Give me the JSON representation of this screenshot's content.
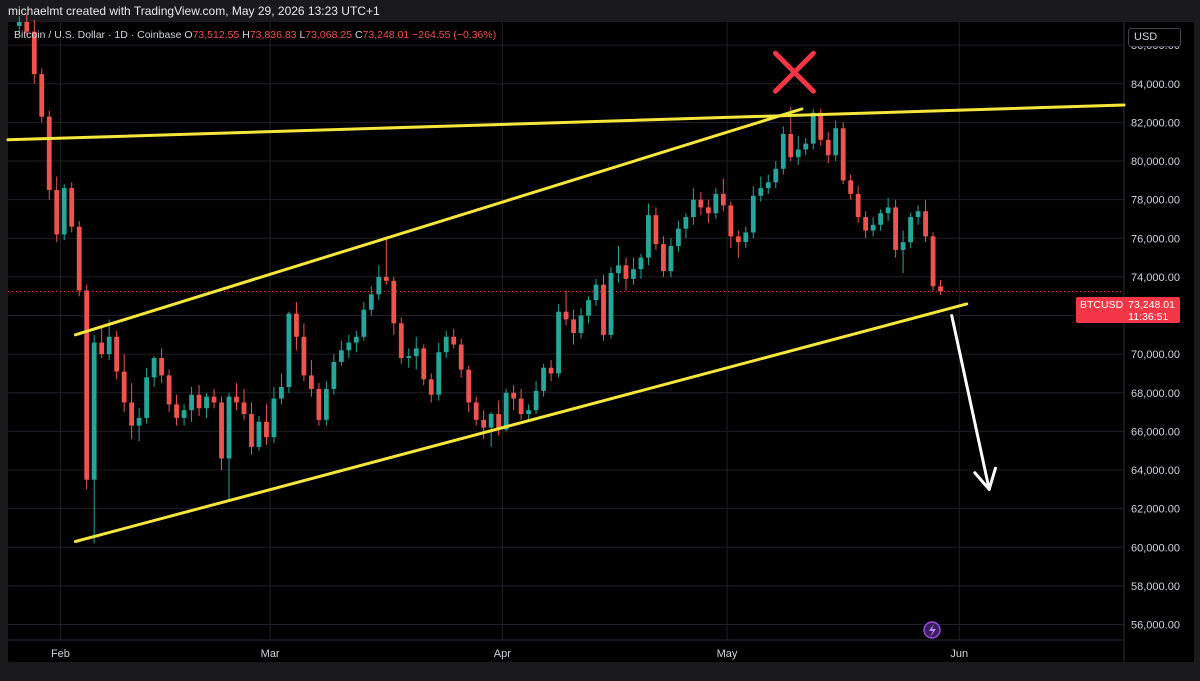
{
  "header": {
    "credit": "michaelmt created with TradingView.com, May 29, 2026 13:23 UTC+1"
  },
  "symbol_info": {
    "title": "Bitcoin / U.S. Dollar · 1D · Coinbase",
    "open_label": "O",
    "open": "73,512.55",
    "high_label": "H",
    "high": "73,836.83",
    "low_label": "L",
    "low": "73,068.25",
    "close_label": "C",
    "close": "73,248.01",
    "change": "−264.55 (−0.36%)"
  },
  "price_scale": {
    "currency": "USD",
    "ticks": [
      "86,000.00",
      "84,000.00",
      "82,000.00",
      "80,000.00",
      "78,000.00",
      "76,000.00",
      "74,000.00",
      "72,000.00",
      "70,000.00",
      "68,000.00",
      "66,000.00",
      "64,000.00",
      "62,000.00",
      "60,000.00",
      "58,000.00",
      "56,000.00"
    ]
  },
  "time_scale": {
    "ticks": [
      "Feb",
      "Mar",
      "Apr",
      "May",
      "Jun"
    ]
  },
  "last_price_tag": {
    "symbol": "BTCUSD",
    "price": "73,248.01",
    "countdown": "11:36:51"
  },
  "colors": {
    "up": "#26a69a",
    "down": "#ef5350",
    "trendline": "#f5e63c",
    "cross": "#f23645",
    "arrow": "#ffffff",
    "grid": "#1f2126"
  },
  "chart_data": {
    "type": "candlestick",
    "title": "Bitcoin / U.S. Dollar · 1D · Coinbase",
    "ylim": [
      55200,
      87200
    ],
    "x_range": [
      "2026-01-25",
      "2026-06-23"
    ],
    "grid": true,
    "y_ticks": [
      86000,
      84000,
      82000,
      80000,
      78000,
      76000,
      74000,
      72000,
      70000,
      68000,
      66000,
      64000,
      62000,
      60000,
      58000,
      56000
    ],
    "x_ticks": [
      {
        "label": "Feb",
        "date": "2026-02-01"
      },
      {
        "label": "Mar",
        "date": "2026-03-01"
      },
      {
        "label": "Apr",
        "date": "2026-04-01"
      },
      {
        "label": "May",
        "date": "2026-05-01"
      },
      {
        "label": "Jun",
        "date": "2026-06-01"
      }
    ],
    "candles": [
      [
        "2026-01-26",
        87000,
        87500,
        86600,
        87200
      ],
      [
        "2026-01-27",
        87200,
        87600,
        86500,
        86700
      ],
      [
        "2026-01-28",
        86700,
        87300,
        84000,
        84500
      ],
      [
        "2026-01-29",
        84500,
        84800,
        82000,
        82300
      ],
      [
        "2026-01-30",
        82300,
        82600,
        78000,
        78500
      ],
      [
        "2026-01-31",
        78500,
        79200,
        75800,
        76200
      ],
      [
        "2026-02-01",
        76200,
        78800,
        75900,
        78600
      ],
      [
        "2026-02-02",
        78600,
        78900,
        76300,
        76600
      ],
      [
        "2026-02-03",
        76600,
        76900,
        73000,
        73300
      ],
      [
        "2026-02-04",
        73300,
        73600,
        63000,
        63500
      ],
      [
        "2026-02-05",
        63500,
        71000,
        60200,
        70600
      ],
      [
        "2026-02-06",
        70600,
        71500,
        69800,
        70000
      ],
      [
        "2026-02-07",
        70000,
        71800,
        69700,
        70900
      ],
      [
        "2026-02-08",
        70900,
        71200,
        68700,
        69100
      ],
      [
        "2026-02-09",
        69100,
        70000,
        67000,
        67500
      ],
      [
        "2026-02-10",
        67500,
        68500,
        65600,
        66300
      ],
      [
        "2026-02-11",
        66300,
        67200,
        65500,
        66700
      ],
      [
        "2026-02-12",
        66700,
        69300,
        66400,
        68800
      ],
      [
        "2026-02-13",
        68800,
        69900,
        68300,
        69800
      ],
      [
        "2026-02-14",
        69800,
        70300,
        68500,
        68900
      ],
      [
        "2026-02-15",
        68900,
        69200,
        67000,
        67400
      ],
      [
        "2026-02-16",
        67400,
        67900,
        66300,
        66700
      ],
      [
        "2026-02-17",
        66700,
        67400,
        66300,
        67100
      ],
      [
        "2026-02-18",
        67100,
        68300,
        66500,
        67900
      ],
      [
        "2026-02-19",
        67900,
        68400,
        66800,
        67200
      ],
      [
        "2026-02-20",
        67200,
        68000,
        66700,
        67800
      ],
      [
        "2026-02-21",
        67800,
        68200,
        67200,
        67500
      ],
      [
        "2026-02-22",
        67500,
        67800,
        64000,
        64600
      ],
      [
        "2026-02-23",
        64600,
        68000,
        62500,
        67800
      ],
      [
        "2026-02-24",
        67800,
        68500,
        67100,
        67500
      ],
      [
        "2026-02-25",
        67500,
        68200,
        66600,
        66900
      ],
      [
        "2026-02-26",
        66900,
        67500,
        64800,
        65200
      ],
      [
        "2026-02-27",
        65200,
        66800,
        65000,
        66500
      ],
      [
        "2026-02-28",
        66500,
        67400,
        65300,
        65700
      ],
      [
        "2026-03-01",
        65700,
        68300,
        65400,
        67700
      ],
      [
        "2026-03-02",
        67700,
        69000,
        67400,
        68300
      ],
      [
        "2026-03-03",
        68300,
        72200,
        68000,
        72100
      ],
      [
        "2026-03-04",
        72100,
        72700,
        70200,
        70900
      ],
      [
        "2026-03-05",
        70900,
        71600,
        68600,
        68900
      ],
      [
        "2026-03-06",
        68900,
        69700,
        67800,
        68200
      ],
      [
        "2026-03-07",
        68200,
        68500,
        66300,
        66600
      ],
      [
        "2026-03-08",
        66600,
        68600,
        66300,
        68200
      ],
      [
        "2026-03-09",
        68200,
        70000,
        67900,
        69600
      ],
      [
        "2026-03-10",
        69600,
        70700,
        69400,
        70200
      ],
      [
        "2026-03-11",
        70200,
        71000,
        69800,
        70600
      ],
      [
        "2026-03-12",
        70600,
        71200,
        70100,
        70900
      ],
      [
        "2026-03-13",
        70900,
        72700,
        70700,
        72300
      ],
      [
        "2026-03-14",
        72300,
        73500,
        72000,
        73100
      ],
      [
        "2026-03-15",
        73100,
        74600,
        72800,
        74000
      ],
      [
        "2026-03-16",
        74000,
        76100,
        73600,
        73800
      ],
      [
        "2026-03-17",
        73800,
        74000,
        71000,
        71600
      ],
      [
        "2026-03-18",
        71600,
        71900,
        69500,
        69800
      ],
      [
        "2026-03-19",
        69800,
        70300,
        69300,
        69900
      ],
      [
        "2026-03-20",
        69900,
        70900,
        69200,
        70300
      ],
      [
        "2026-03-21",
        70300,
        70500,
        68400,
        68700
      ],
      [
        "2026-03-22",
        68700,
        69000,
        67500,
        67900
      ],
      [
        "2026-03-23",
        67900,
        70600,
        67600,
        70100
      ],
      [
        "2026-03-24",
        70100,
        71200,
        69800,
        70900
      ],
      [
        "2026-03-25",
        70900,
        71300,
        70300,
        70500
      ],
      [
        "2026-03-26",
        70500,
        70800,
        68800,
        69200
      ],
      [
        "2026-03-27",
        69200,
        69400,
        67000,
        67500
      ],
      [
        "2026-03-28",
        67500,
        67800,
        66300,
        66600
      ],
      [
        "2026-03-29",
        66600,
        67100,
        65600,
        66200
      ],
      [
        "2026-03-30",
        66200,
        67000,
        65200,
        66900
      ],
      [
        "2026-03-31",
        66900,
        67600,
        65800,
        66100
      ],
      [
        "2026-04-01",
        66100,
        68200,
        66000,
        68000
      ],
      [
        "2026-04-02",
        68000,
        68400,
        67100,
        67700
      ],
      [
        "2026-04-03",
        67700,
        68200,
        66600,
        66900
      ],
      [
        "2026-04-04",
        66900,
        67400,
        66500,
        67100
      ],
      [
        "2026-04-05",
        67100,
        68600,
        66900,
        68100
      ],
      [
        "2026-04-06",
        68100,
        69500,
        67800,
        69300
      ],
      [
        "2026-04-07",
        69300,
        69700,
        68600,
        69000
      ],
      [
        "2026-04-08",
        69000,
        72600,
        68800,
        72200
      ],
      [
        "2026-04-09",
        72200,
        73300,
        71500,
        71800
      ],
      [
        "2026-04-10",
        71800,
        72300,
        70500,
        71100
      ],
      [
        "2026-04-11",
        71100,
        72400,
        70800,
        72000
      ],
      [
        "2026-04-12",
        72000,
        73000,
        71600,
        72800
      ],
      [
        "2026-04-13",
        72800,
        73900,
        72500,
        73600
      ],
      [
        "2026-04-14",
        73600,
        74100,
        70700,
        71000
      ],
      [
        "2026-04-15",
        71000,
        74500,
        70800,
        74200
      ],
      [
        "2026-04-16",
        74200,
        75600,
        73700,
        74600
      ],
      [
        "2026-04-17",
        74600,
        75000,
        73300,
        73900
      ],
      [
        "2026-04-18",
        73900,
        75000,
        73600,
        74400
      ],
      [
        "2026-04-19",
        74400,
        75200,
        73900,
        75000
      ],
      [
        "2026-04-20",
        75000,
        77800,
        74600,
        77200
      ],
      [
        "2026-04-21",
        77200,
        77600,
        75400,
        75700
      ],
      [
        "2026-04-22",
        75700,
        76100,
        74000,
        74300
      ],
      [
        "2026-04-23",
        74300,
        76000,
        74000,
        75600
      ],
      [
        "2026-04-24",
        75600,
        76900,
        75300,
        76500
      ],
      [
        "2026-04-25",
        76500,
        77300,
        76000,
        77100
      ],
      [
        "2026-04-26",
        77100,
        78600,
        76700,
        78000
      ],
      [
        "2026-04-27",
        78000,
        78400,
        77200,
        77600
      ],
      [
        "2026-04-28",
        77600,
        78000,
        76800,
        77300
      ],
      [
        "2026-04-29",
        77300,
        78600,
        77000,
        78300
      ],
      [
        "2026-04-30",
        78300,
        79100,
        77400,
        77700
      ],
      [
        "2026-05-01",
        77700,
        77900,
        75500,
        76100
      ],
      [
        "2026-05-02",
        76100,
        76400,
        75000,
        75800
      ],
      [
        "2026-05-03",
        75800,
        76600,
        75500,
        76300
      ],
      [
        "2026-05-04",
        76300,
        78700,
        76000,
        78200
      ],
      [
        "2026-05-05",
        78200,
        79200,
        77900,
        78600
      ],
      [
        "2026-05-06",
        78600,
        79300,
        78300,
        78900
      ],
      [
        "2026-05-07",
        78900,
        80000,
        78600,
        79600
      ],
      [
        "2026-05-08",
        79600,
        81800,
        79300,
        81400
      ],
      [
        "2026-05-09",
        81400,
        82800,
        80000,
        80200
      ],
      [
        "2026-05-10",
        80200,
        81300,
        79800,
        80600
      ],
      [
        "2026-05-11",
        80600,
        81200,
        80300,
        80900
      ],
      [
        "2026-05-12",
        80900,
        82700,
        80600,
        82500
      ],
      [
        "2026-05-13",
        82500,
        82700,
        80800,
        81100
      ],
      [
        "2026-05-14",
        81100,
        81500,
        79900,
        80300
      ],
      [
        "2026-05-15",
        80300,
        82100,
        80000,
        81700
      ],
      [
        "2026-05-16",
        81700,
        82000,
        78800,
        79000
      ],
      [
        "2026-05-17",
        79000,
        79300,
        78000,
        78300
      ],
      [
        "2026-05-18",
        78300,
        78700,
        76800,
        77100
      ],
      [
        "2026-05-19",
        77100,
        77400,
        76000,
        76400
      ],
      [
        "2026-05-20",
        76400,
        77100,
        76100,
        76700
      ],
      [
        "2026-05-21",
        76700,
        77500,
        76400,
        77300
      ],
      [
        "2026-05-22",
        77300,
        78100,
        76900,
        77600
      ],
      [
        "2026-05-23",
        77600,
        78000,
        75000,
        75400
      ],
      [
        "2026-05-24",
        75400,
        76400,
        74200,
        75800
      ],
      [
        "2026-05-25",
        75800,
        77300,
        75500,
        77100
      ],
      [
        "2026-05-26",
        77100,
        77700,
        76700,
        77400
      ],
      [
        "2026-05-27",
        77400,
        78000,
        75800,
        76100
      ],
      [
        "2026-05-28",
        76100,
        76300,
        73300,
        73512.55
      ],
      [
        "2026-05-29",
        73512.55,
        73836.83,
        73068.25,
        73248.01
      ]
    ],
    "annotations": [
      {
        "type": "trendline",
        "label": "resistance",
        "from": {
          "date": "2026-01-25",
          "price": 81100
        },
        "to": {
          "date": "2026-06-23",
          "price": 82900
        }
      },
      {
        "type": "trendline",
        "label": "channel-upper",
        "from": {
          "date": "2026-02-03",
          "price": 71000
        },
        "to": {
          "date": "2026-05-11",
          "price": 82700
        }
      },
      {
        "type": "trendline",
        "label": "channel-lower",
        "from": {
          "date": "2026-02-03",
          "price": 60300
        },
        "to": {
          "date": "2026-06-02",
          "price": 72600
        }
      },
      {
        "type": "cross",
        "date": "2026-05-10",
        "price": 84600
      },
      {
        "type": "arrow",
        "from": {
          "date": "2026-05-31",
          "price": 72000
        },
        "to": {
          "date": "2026-06-05",
          "price": 63000
        }
      }
    ]
  }
}
